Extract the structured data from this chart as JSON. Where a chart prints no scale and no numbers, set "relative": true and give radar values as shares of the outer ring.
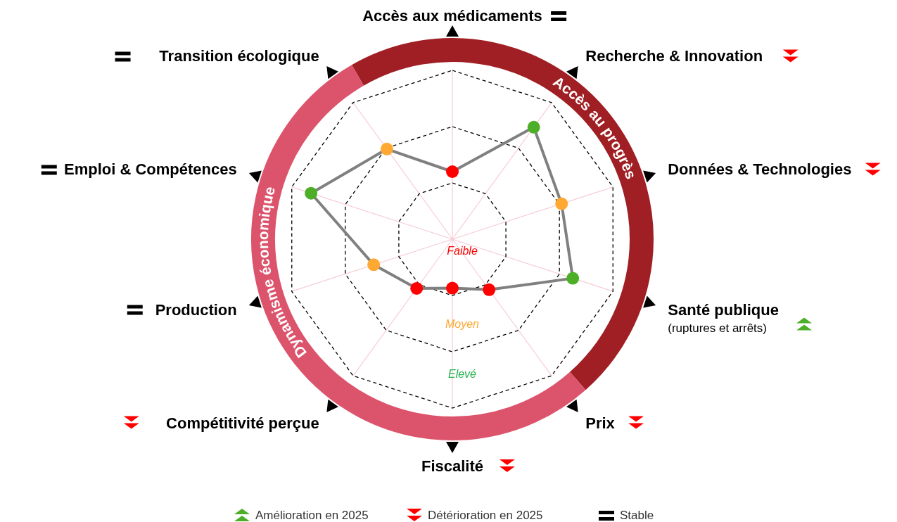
{
  "chart_data": {
    "type": "radar",
    "relative": true,
    "grid": true,
    "marker": "circle",
    "categories": [
      "Accès aux médicaments",
      "Recherche & Innovation",
      "Données & Technologies",
      "Santé publique\n(ruptures et arrêts)",
      "Prix",
      "Fiscalité",
      "Compétitivité perçue",
      "Production",
      "Emploi & Compétences",
      "Transition écologique"
    ],
    "series": [
      {
        "color": "#808080",
        "colors": [
          "#ff0000",
          "#4caf27",
          "#ffa832",
          "#4caf27",
          "#ff0000",
          "#ff0000",
          "#ff0000",
          "#ffa832",
          "#4caf27",
          "#ffa832"
        ],
        "values": [
          0.4,
          0.82,
          0.68,
          0.75,
          0.37,
          0.29,
          0.36,
          0.49,
          0.88,
          0.66
        ]
      }
    ],
    "annotations": [
      "Accès au progrès",
      "Dynamisme économique",
      "Amélioration en 2025",
      "Détérioration en 2025",
      "Stable",
      "Faible",
      "Moyen",
      "Elevé"
    ]
  }
}
